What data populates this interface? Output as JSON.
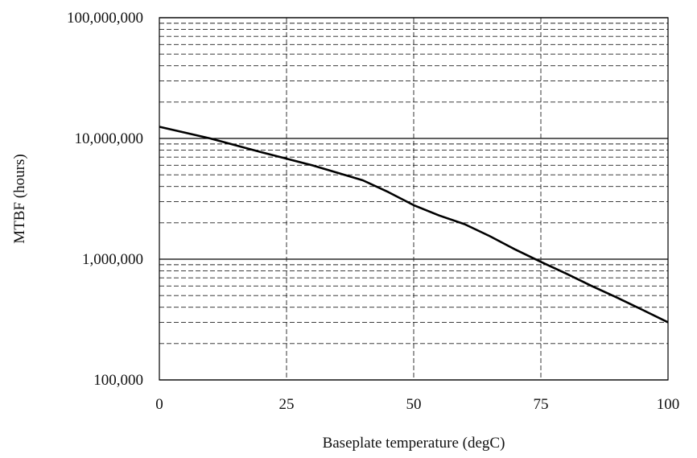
{
  "chart_data": {
    "type": "line",
    "title": "",
    "xlabel": "Baseplate temperature (degC)",
    "ylabel": "MTBF (hours)",
    "xlim": [
      0,
      100
    ],
    "ylim": [
      100000,
      100000000
    ],
    "yscale": "log",
    "x_ticks": [
      0,
      25,
      50,
      75,
      100
    ],
    "x_tick_labels": [
      "0",
      "25",
      "50",
      "75",
      "100"
    ],
    "y_ticks": [
      100000,
      1000000,
      10000000,
      100000000
    ],
    "y_tick_labels": [
      "100,000",
      "1,000,000",
      "10,000,000",
      "100,000,000"
    ],
    "grid": true,
    "legend": "none",
    "line_color": "#000000",
    "series": [
      {
        "x": [
          0,
          10,
          20,
          25,
          30,
          40,
          45,
          50,
          55,
          60,
          65,
          70,
          75,
          80,
          85,
          90,
          95,
          100
        ],
        "y": [
          12500000,
          10000000,
          7700000,
          6800000,
          6000000,
          4500000,
          3600000,
          2800000,
          2300000,
          1950000,
          1550000,
          1200000,
          950000,
          760000,
          600000,
          480000,
          380000,
          300000
        ]
      }
    ]
  }
}
